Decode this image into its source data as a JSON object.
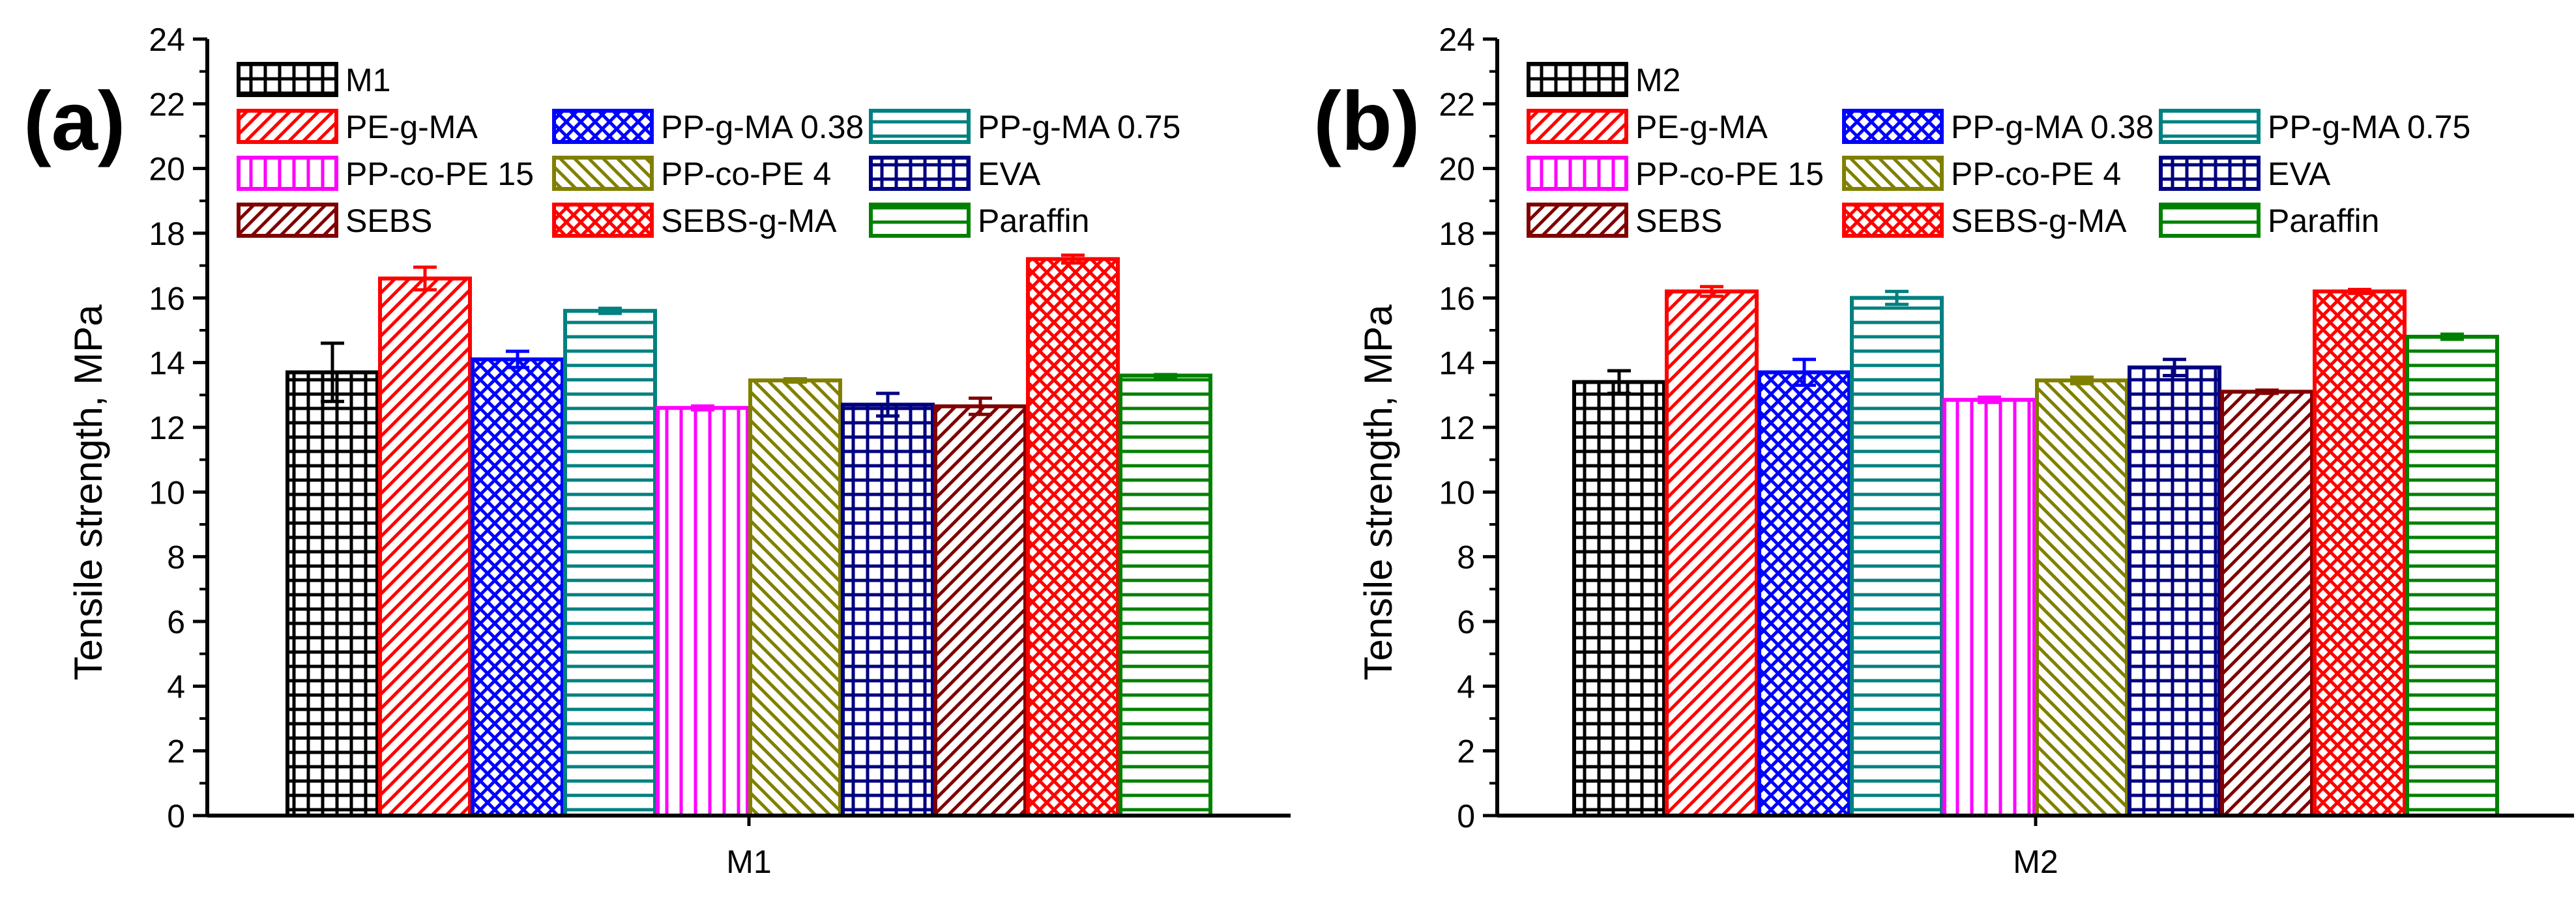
{
  "chart_data": [
    {
      "panel_label": "(a)",
      "type": "bar",
      "title": "",
      "xlabel": "M1",
      "ylabel": "Tensile strength, MPa",
      "ylim": [
        0,
        24
      ],
      "yticks": [
        "0",
        "2",
        "4",
        "6",
        "8",
        "10",
        "12",
        "14",
        "16",
        "18",
        "20",
        "22",
        "24"
      ],
      "grid": false,
      "legend_position": "top",
      "series": [
        {
          "name": "M1",
          "value": 13.7,
          "error": 0.9,
          "color": "#000000",
          "pattern": "grid"
        },
        {
          "name": "PE-g-MA",
          "value": 16.6,
          "error": 0.35,
          "color": "#ff0000",
          "pattern": "diag-up"
        },
        {
          "name": "PP-g-MA 0.38",
          "value": 14.1,
          "error": 0.25,
          "color": "#0000ff",
          "pattern": "crosshatch"
        },
        {
          "name": "PP-g-MA 0.75",
          "value": 15.6,
          "error": 0.08,
          "color": "#008080",
          "pattern": "horizontal"
        },
        {
          "name": "PP-co-PE 15",
          "value": 12.6,
          "error": 0.06,
          "color": "#ff00ff",
          "pattern": "vertical"
        },
        {
          "name": "PP-co-PE 4",
          "value": 13.45,
          "error": 0.05,
          "color": "#808000",
          "pattern": "diag-down"
        },
        {
          "name": "EVA",
          "value": 12.7,
          "error": 0.35,
          "color": "#000080",
          "pattern": "grid"
        },
        {
          "name": "SEBS",
          "value": 12.65,
          "error": 0.25,
          "color": "#800000",
          "pattern": "diag-up"
        },
        {
          "name": "SEBS-g-MA",
          "value": 17.2,
          "error": 0.12,
          "color": "#ff0000",
          "pattern": "crosshatch"
        },
        {
          "name": "Paraffin",
          "value": 13.6,
          "error": 0.03,
          "color": "#008000",
          "pattern": "horizontal"
        }
      ]
    },
    {
      "panel_label": "(b)",
      "type": "bar",
      "title": "",
      "xlabel": "M2",
      "ylabel": "Tensile strength, MPa",
      "ylim": [
        0,
        24
      ],
      "yticks": [
        "0",
        "2",
        "4",
        "6",
        "8",
        "10",
        "12",
        "14",
        "16",
        "18",
        "20",
        "22",
        "24"
      ],
      "grid": false,
      "legend_position": "top",
      "series": [
        {
          "name": "M2",
          "value": 13.4,
          "error": 0.35,
          "color": "#000000",
          "pattern": "grid"
        },
        {
          "name": "PE-g-MA",
          "value": 16.2,
          "error": 0.15,
          "color": "#ff0000",
          "pattern": "diag-up"
        },
        {
          "name": "PP-g-MA 0.38",
          "value": 13.7,
          "error": 0.4,
          "color": "#0000ff",
          "pattern": "crosshatch"
        },
        {
          "name": "PP-g-MA 0.75",
          "value": 16.0,
          "error": 0.2,
          "color": "#008080",
          "pattern": "horizontal"
        },
        {
          "name": "PP-co-PE 15",
          "value": 12.85,
          "error": 0.08,
          "color": "#ff00ff",
          "pattern": "vertical"
        },
        {
          "name": "PP-co-PE 4",
          "value": 13.45,
          "error": 0.1,
          "color": "#808000",
          "pattern": "diag-down"
        },
        {
          "name": "EVA",
          "value": 13.85,
          "error": 0.25,
          "color": "#000080",
          "pattern": "grid"
        },
        {
          "name": "SEBS",
          "value": 13.1,
          "error": 0.05,
          "color": "#800000",
          "pattern": "diag-up"
        },
        {
          "name": "SEBS-g-MA",
          "value": 16.2,
          "error": 0.06,
          "color": "#ff0000",
          "pattern": "crosshatch"
        },
        {
          "name": "Paraffin",
          "value": 14.8,
          "error": 0.08,
          "color": "#008000",
          "pattern": "horizontal"
        }
      ]
    }
  ]
}
